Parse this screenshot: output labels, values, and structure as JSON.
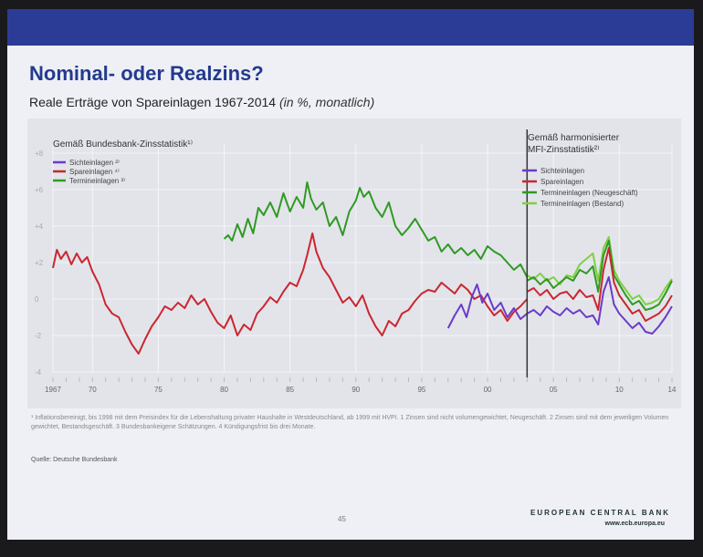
{
  "slide": {
    "title": "Nominal- oder Realzins?",
    "subtitle_main": "Reale Erträge von Spareinlagen 1967-2014 ",
    "subtitle_italic": "(in %, monatlich)",
    "footnote": "¹ Inflationsbereinigt, bis 1998 mit dem Preisindex für die Lebenshaltung privater Haushalte in Westdeutschland, ab 1999 mit HVPI. 1 Zinsen sind nicht volumengewichtet, Neugeschäft. 2 Zinsen sind mit dem jeweiligen Volumen gewichtet, Bestandsgeschäft. 3 Bundesbankeigene Schätzungen. 4 Kündigungsfrist bis drei Monate.",
    "source": "Quelle: Deutsche Bundesbank",
    "page_number": "45",
    "brand": "EUROPEAN CENTRAL BANK",
    "brand_url": "www.ecb.europa.eu"
  },
  "colors": {
    "band": "#2b3c97",
    "title": "#243a8e",
    "sicht": "#6a3bc8",
    "spar": "#cc2630",
    "termin": "#2f9a22",
    "termin_bestand": "#7fd140"
  },
  "chart_data": {
    "type": "line",
    "legend_left": {
      "heading": "Gemäß Bundesbank-Zinsstatistik¹⁾",
      "entries": [
        "Sichteinlagen ²⁾",
        "Spareinlagen ⁴⁾",
        "Termineinlagen ³⁾"
      ]
    },
    "legend_right": {
      "heading": [
        "Gemäß harmonisierter",
        "MFI-Zinsstatistik²⁾"
      ],
      "entries": [
        "Sichteinlagen",
        "Spareinlagen",
        "Termineinlagen (Neugeschäft)",
        "Termineinlagen (Bestand)"
      ]
    },
    "xlim": [
      1967,
      2014
    ],
    "ylim": [
      -4,
      8
    ],
    "y_ticks": [
      "+8",
      "+6",
      "+4",
      "+2",
      "0",
      "-2",
      "-4"
    ],
    "x_ticks": [
      "1967",
      "70",
      "75",
      "80",
      "85",
      "90",
      "95",
      "00",
      "05",
      "10",
      "14"
    ],
    "x_tick_years": [
      1967,
      1970,
      1975,
      1980,
      1985,
      1990,
      1995,
      2000,
      2005,
      2010,
      2014
    ],
    "break_year": 2003,
    "series": [
      {
        "name": "Spareinlagen",
        "key": "spar",
        "x": [
          1967,
          1967.3,
          1967.6,
          1968,
          1968.4,
          1968.8,
          1969.2,
          1969.6,
          1970,
          1970.5,
          1971,
          1971.5,
          1972,
          1972.5,
          1973,
          1973.5,
          1974,
          1974.5,
          1975,
          1975.5,
          1976,
          1976.5,
          1977,
          1977.5,
          1978,
          1978.5,
          1979,
          1979.5,
          1980,
          1980.5,
          1981,
          1981.5,
          1982,
          1982.5,
          1983,
          1983.5,
          1984,
          1984.5,
          1985,
          1985.5,
          1986,
          1986.3,
          1986.7,
          1987,
          1987.5,
          1988,
          1988.5,
          1989,
          1989.5,
          1990,
          1990.5,
          1991,
          1991.5,
          1992,
          1992.5,
          1993,
          1993.5,
          1994,
          1994.5,
          1995,
          1995.5,
          1996,
          1996.5,
          1997,
          1997.5,
          1998,
          1998.5,
          1999,
          1999.5,
          2000,
          2000.5,
          2001,
          2001.5,
          2002,
          2002.5,
          2003
        ],
        "y": [
          1.7,
          2.7,
          2.2,
          2.6,
          1.9,
          2.5,
          2.0,
          2.3,
          1.5,
          0.8,
          -0.3,
          -0.8,
          -1.0,
          -1.8,
          -2.5,
          -3.0,
          -2.2,
          -1.5,
          -1.0,
          -0.4,
          -0.6,
          -0.2,
          -0.5,
          0.2,
          -0.3,
          0.0,
          -0.7,
          -1.3,
          -1.6,
          -0.9,
          -2.0,
          -1.4,
          -1.7,
          -0.8,
          -0.4,
          0.1,
          -0.2,
          0.4,
          0.9,
          0.7,
          1.6,
          2.4,
          3.6,
          2.6,
          1.7,
          1.2,
          0.5,
          -0.2,
          0.1,
          -0.4,
          0.2,
          -0.8,
          -1.5,
          -2.0,
          -1.2,
          -1.5,
          -0.8,
          -0.6,
          -0.1,
          0.3,
          0.5,
          0.4,
          0.9,
          0.6,
          0.3,
          0.8,
          0.5,
          0.0,
          0.2,
          -0.4,
          -0.9,
          -0.6,
          -1.2,
          -0.7,
          -0.4,
          0.0
        ]
      },
      {
        "name": "Termineinlagen",
        "key": "termin",
        "x": [
          1980,
          1980.3,
          1980.6,
          1981,
          1981.4,
          1981.8,
          1982.2,
          1982.6,
          1983,
          1983.5,
          1984,
          1984.5,
          1985,
          1985.5,
          1986,
          1986.3,
          1986.6,
          1987,
          1987.5,
          1988,
          1988.5,
          1989,
          1989.5,
          1990,
          1990.3,
          1990.6,
          1991,
          1991.5,
          1992,
          1992.5,
          1993,
          1993.5,
          1994,
          1994.5,
          1995,
          1995.5,
          1996,
          1996.5,
          1997,
          1997.5,
          1998,
          1998.5,
          1999,
          1999.5,
          2000,
          2000.5,
          2001,
          2001.5,
          2002,
          2002.5,
          2003
        ],
        "y": [
          3.3,
          3.5,
          3.2,
          4.1,
          3.4,
          4.4,
          3.6,
          5.0,
          4.6,
          5.3,
          4.5,
          5.8,
          4.8,
          5.6,
          5.0,
          6.4,
          5.5,
          4.9,
          5.3,
          4.0,
          4.5,
          3.5,
          4.8,
          5.4,
          6.1,
          5.6,
          5.9,
          5.0,
          4.5,
          5.3,
          4.0,
          3.5,
          3.9,
          4.4,
          3.8,
          3.2,
          3.4,
          2.6,
          3.0,
          2.5,
          2.8,
          2.4,
          2.7,
          2.2,
          2.9,
          2.6,
          2.4,
          2.0,
          1.6,
          1.9,
          1.2
        ]
      },
      {
        "name": "Sichteinlagen",
        "key": "sicht",
        "x": [
          1997,
          1997.5,
          1998,
          1998.4,
          1998.8,
          1999.2,
          1999.6,
          2000,
          2000.5,
          2001,
          2001.5,
          2002,
          2002.5,
          2003
        ],
        "y": [
          -1.6,
          -0.9,
          -0.3,
          -1.0,
          0.1,
          0.8,
          -0.2,
          0.3,
          -0.6,
          -0.2,
          -1.0,
          -0.5,
          -1.1,
          -0.8
        ]
      },
      {
        "name": "Sichteinlagen (MFI)",
        "key": "sicht",
        "x": [
          2003,
          2003.5,
          2004,
          2004.5,
          2005,
          2005.5,
          2006,
          2006.5,
          2007,
          2007.5,
          2008,
          2008.4,
          2008.8,
          2009.2,
          2009.6,
          2010,
          2010.5,
          2011,
          2011.5,
          2012,
          2012.5,
          2013,
          2013.5,
          2014
        ],
        "y": [
          -0.8,
          -0.6,
          -0.9,
          -0.4,
          -0.7,
          -0.9,
          -0.5,
          -0.8,
          -0.6,
          -1.0,
          -0.9,
          -1.4,
          0.4,
          1.2,
          -0.3,
          -0.8,
          -1.2,
          -1.6,
          -1.3,
          -1.8,
          -1.9,
          -1.5,
          -1.0,
          -0.4
        ]
      },
      {
        "name": "Spareinlagen (MFI)",
        "key": "spar",
        "x": [
          2003,
          2003.5,
          2004,
          2004.5,
          2005,
          2005.5,
          2006,
          2006.5,
          2007,
          2007.5,
          2008,
          2008.4,
          2008.8,
          2009.2,
          2009.6,
          2010,
          2010.5,
          2011,
          2011.5,
          2012,
          2012.5,
          2013,
          2013.5,
          2014
        ],
        "y": [
          0.4,
          0.6,
          0.2,
          0.5,
          0.0,
          0.3,
          0.4,
          0.0,
          0.5,
          0.1,
          0.2,
          -0.6,
          1.6,
          2.8,
          0.9,
          0.2,
          -0.3,
          -0.8,
          -0.6,
          -1.2,
          -1.0,
          -0.8,
          -0.4,
          0.2
        ]
      },
      {
        "name": "Termineinlagen (Neugeschäft)",
        "key": "termin",
        "x": [
          2003,
          2003.5,
          2004,
          2004.5,
          2005,
          2005.5,
          2006,
          2006.5,
          2007,
          2007.5,
          2008,
          2008.4,
          2008.8,
          2009.2,
          2009.6,
          2010,
          2010.5,
          2011,
          2011.5,
          2012,
          2012.5,
          2013,
          2013.5,
          2014
        ],
        "y": [
          1.0,
          1.2,
          0.8,
          1.1,
          0.6,
          0.9,
          1.2,
          1.0,
          1.6,
          1.4,
          1.8,
          0.4,
          2.4,
          3.2,
          1.3,
          0.8,
          0.2,
          -0.3,
          -0.1,
          -0.6,
          -0.5,
          -0.3,
          0.3,
          1.0
        ]
      },
      {
        "name": "Termineinlagen (Bestand)",
        "key": "termin_bestand",
        "x": [
          2003,
          2003.5,
          2004,
          2004.5,
          2005,
          2005.5,
          2006,
          2006.5,
          2007,
          2007.5,
          2008,
          2008.4,
          2008.8,
          2009.2,
          2009.6,
          2010,
          2010.5,
          2011,
          2011.5,
          2012,
          2012.5,
          2013,
          2013.5,
          2014
        ],
        "y": [
          1.3,
          1.1,
          1.4,
          1.0,
          1.2,
          0.8,
          1.3,
          1.2,
          1.9,
          2.2,
          2.5,
          1.0,
          2.8,
          3.4,
          1.6,
          1.0,
          0.5,
          0.0,
          0.2,
          -0.3,
          -0.2,
          0.0,
          0.6,
          1.1
        ]
      }
    ]
  }
}
